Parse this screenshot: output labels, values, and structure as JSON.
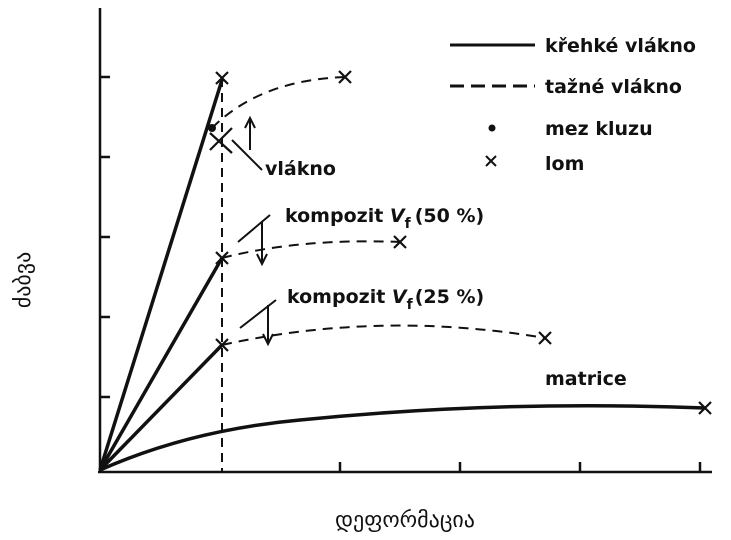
{
  "axes": {
    "x_label": "დეფორმაცია",
    "y_label": "ძაბვა"
  },
  "legend": [
    "křehké vlákno",
    "tažné vlákno",
    "mez kluzu",
    "lom"
  ],
  "annotations": {
    "fiber": "vlákno",
    "composite_50": {
      "label": "kompozit",
      "variable": "V",
      "subscript": "f",
      "value": "(50 %)"
    },
    "composite_25": {
      "label": "kompozit",
      "variable": "V",
      "subscript": "f",
      "value": "(25 %)"
    },
    "matrix": "matrice"
  }
}
